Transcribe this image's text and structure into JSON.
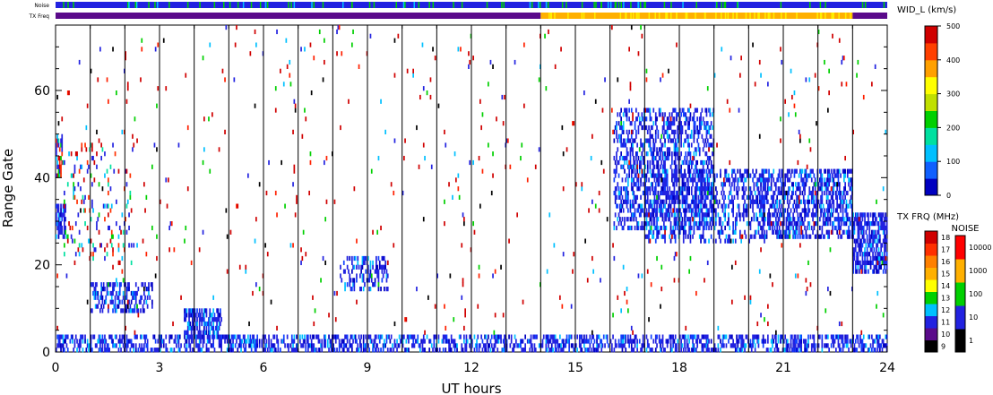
{
  "chart_data": {
    "type": "heatmap",
    "title": "",
    "xlabel": "UT hours",
    "ylabel": "Range Gate",
    "xlim": [
      0,
      24
    ],
    "ylim": [
      0,
      75
    ],
    "xticks": [
      "0",
      "3",
      "6",
      "9",
      "12",
      "15",
      "18",
      "21",
      "24"
    ],
    "yticks": [
      "0",
      "20",
      "40",
      "60"
    ],
    "top_bars": {
      "noise_label": "Noise",
      "txfreq_label": "TX Freq",
      "noise_base_color": "#2222e0",
      "txfreq_segments": [
        {
          "start": 0,
          "end": 14,
          "color": "#5a0a8a"
        },
        {
          "start": 14,
          "end": 23,
          "color": "#ffb000"
        },
        {
          "start": 23,
          "end": 24,
          "color": "#5a0a8a"
        }
      ]
    },
    "main_colorbar": {
      "label": "WID_L (km/s)",
      "min": 0,
      "max": 500,
      "ticks": [
        "0",
        "100",
        "200",
        "300",
        "400",
        "500"
      ],
      "colors": [
        "#0000c0",
        "#1060ff",
        "#00c0ff",
        "#00e0a0",
        "#00d000",
        "#c0e000",
        "#ffff00",
        "#ffa000",
        "#ff4000",
        "#d00000"
      ]
    },
    "txfreq_colorbar": {
      "label": "TX FRQ (MHz)",
      "ticks": [
        "9",
        "10",
        "11",
        "12",
        "13",
        "14",
        "15",
        "16",
        "17",
        "18"
      ],
      "colors": [
        "#000000",
        "#5a0a8a",
        "#2222e0",
        "#00c0ff",
        "#00d000",
        "#ffff00",
        "#ffb000",
        "#ff8000",
        "#ff3000",
        "#d00000"
      ]
    },
    "noise_colorbar": {
      "label": "NOISE",
      "ticks": [
        "1",
        "10",
        "100",
        "1000",
        "10000"
      ],
      "colors": [
        "#000000",
        "#2222e0",
        "#00d000",
        "#ffb000",
        "#ff0000"
      ]
    },
    "scatter_regions": [
      {
        "t0": 0.0,
        "t1": 0.3,
        "g0": 26,
        "g1": 34,
        "density": 0.7,
        "palette": "blue"
      },
      {
        "t0": 0.0,
        "t1": 0.2,
        "g0": 40,
        "g1": 50,
        "density": 0.5,
        "palette": "mixed"
      },
      {
        "t0": 0.2,
        "t1": 2.2,
        "g0": 20,
        "g1": 48,
        "density": 0.08,
        "palette": "mixed"
      },
      {
        "t0": 1.0,
        "t1": 2.8,
        "g0": 9,
        "g1": 16,
        "density": 0.45,
        "palette": "blue"
      },
      {
        "t0": 0.0,
        "t1": 24.0,
        "g0": 0,
        "g1": 4,
        "density": 0.45,
        "palette": "blue"
      },
      {
        "t0": 3.7,
        "t1": 4.8,
        "g0": 3,
        "g1": 10,
        "density": 0.6,
        "palette": "blue"
      },
      {
        "t0": 8.2,
        "t1": 9.6,
        "g0": 14,
        "g1": 22,
        "density": 0.35,
        "palette": "blue"
      },
      {
        "t0": 16.1,
        "t1": 19.0,
        "g0": 28,
        "g1": 56,
        "density": 0.4,
        "palette": "blue"
      },
      {
        "t0": 17.0,
        "t1": 20.5,
        "g0": 25,
        "g1": 42,
        "density": 0.35,
        "palette": "blue"
      },
      {
        "t0": 20.3,
        "t1": 23.0,
        "g0": 26,
        "g1": 42,
        "density": 0.5,
        "palette": "blue"
      },
      {
        "t0": 23.0,
        "t1": 24.0,
        "g0": 18,
        "g1": 32,
        "density": 0.6,
        "palette": "blue"
      },
      {
        "t0": 0.0,
        "t1": 24.0,
        "g0": 4,
        "g1": 75,
        "density": 0.012,
        "palette": "red"
      }
    ]
  }
}
